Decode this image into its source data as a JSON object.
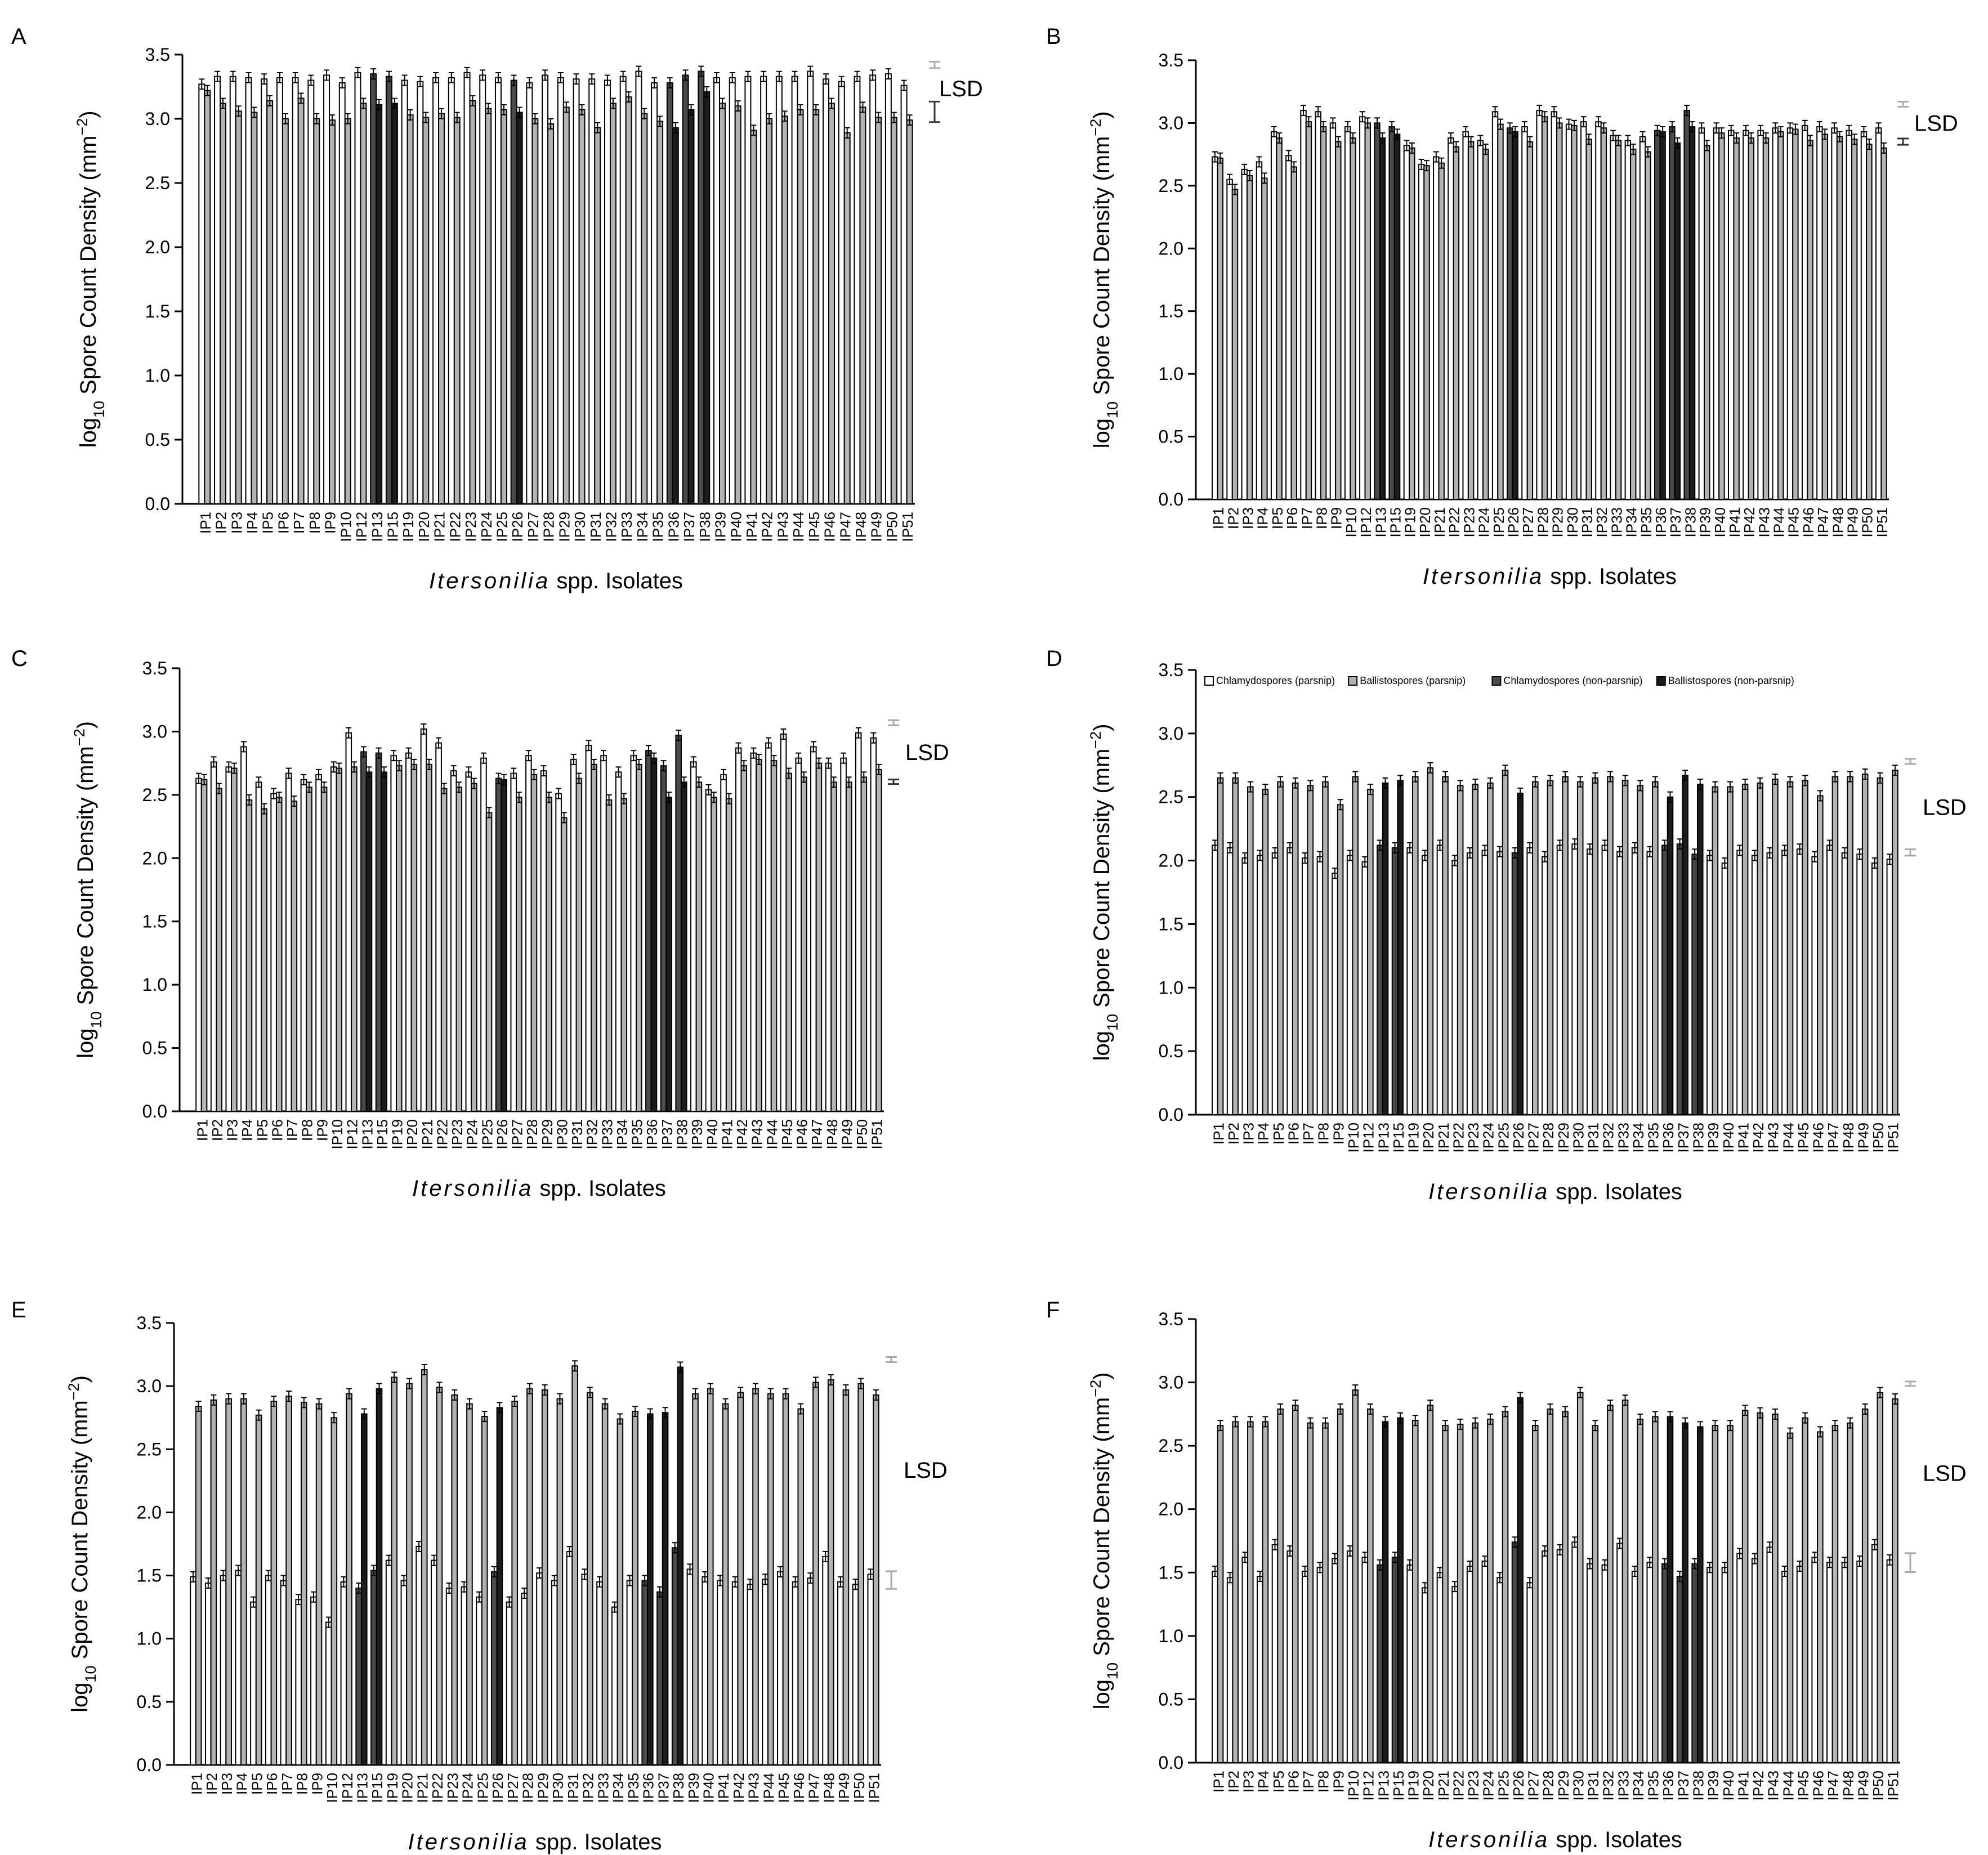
{
  "figure": {
    "xlabel_italic": "Itersonilia",
    "xlabel_rest": " spp. Isolates",
    "ylabel_prefix": "log",
    "ylabel_sub": "10",
    "ylabel_main": "  Spore Count Density  (mm",
    "ylabel_sup": "−2",
    "ylabel_close": ")",
    "lsd_label": "LSD",
    "categories": [
      "IP1",
      "IP2",
      "IP3",
      "IP4",
      "IP5",
      "IP6",
      "IP7",
      "IP8",
      "IP9",
      "IP10",
      "IP12",
      "IP13",
      "IP15",
      "IP19",
      "IP20",
      "IP21",
      "IP22",
      "IP23",
      "IP24",
      "IP25",
      "IP26",
      "IP27",
      "IP28",
      "IP29",
      "IP30",
      "IP31",
      "IP32",
      "IP33",
      "IP34",
      "IP35",
      "IP36",
      "IP37",
      "IP38",
      "IP39",
      "IP40",
      "IP41",
      "IP42",
      "IP43",
      "IP44",
      "IP45",
      "IP46",
      "IP47",
      "IP48",
      "IP49",
      "IP50",
      "IP51"
    ],
    "non_parsnip_isolates": [
      "IP13",
      "IP15",
      "IP26",
      "IP36",
      "IP37",
      "IP38"
    ],
    "legend": [
      "Chlamydospores (parsnip)",
      "Ballistospores (parsnip)",
      "Chlamydospores (non-parsnip)",
      "Ballistospores (non-parsnip)"
    ],
    "colors": {
      "chlamy_parsnip": "#ffffff",
      "ballisto_parsnip": "#b3b3b3",
      "chlamy_nonparsnip": "#4a4a4a",
      "ballisto_nonparsnip": "#1c1c1c",
      "lsd_chlamy": "#aaaaaa",
      "lsd_ballisto": "#333333"
    }
  },
  "chart_data": [
    {
      "type": "bar",
      "panel": "A",
      "ylim": [
        0,
        3.5
      ],
      "yticks": [
        "0.0",
        "0.5",
        "1.0",
        "1.5",
        "2.0",
        "2.5",
        "3.0",
        "3.5"
      ],
      "series": [
        {
          "name": "Chlamydospores",
          "values": [
            3.27,
            3.33,
            3.33,
            3.32,
            3.31,
            3.32,
            3.32,
            3.3,
            3.34,
            3.28,
            3.36,
            3.35,
            3.33,
            3.3,
            3.29,
            3.32,
            3.32,
            3.36,
            3.34,
            3.32,
            3.3,
            3.28,
            3.34,
            3.32,
            3.31,
            3.31,
            3.3,
            3.33,
            3.37,
            3.28,
            3.28,
            3.34,
            3.37,
            3.32,
            3.32,
            3.33,
            3.33,
            3.33,
            3.33,
            3.37,
            3.31,
            3.29,
            3.33,
            3.34,
            3.35,
            3.26
          ]
        },
        {
          "name": "Ballistospores",
          "values": [
            3.22,
            3.12,
            3.06,
            3.05,
            3.14,
            3.0,
            3.16,
            3.0,
            2.99,
            3.0,
            3.12,
            3.11,
            3.12,
            3.03,
            3.01,
            3.04,
            3.01,
            3.14,
            3.08,
            3.07,
            3.05,
            3.0,
            2.96,
            3.09,
            3.07,
            2.93,
            3.12,
            3.17,
            3.04,
            2.98,
            2.93,
            3.07,
            3.21,
            3.12,
            3.1,
            2.91,
            3.0,
            3.02,
            3.07,
            3.07,
            3.12,
            2.89,
            3.09,
            3.01,
            3.01,
            2.99
          ]
        }
      ],
      "lsd": {
        "chlamydospores": 0.05,
        "ballistospores": 0.16
      }
    },
    {
      "type": "bar",
      "panel": "B",
      "ylim": [
        0,
        3.5
      ],
      "yticks": [
        "0.0",
        "0.5",
        "1.0",
        "1.5",
        "2.0",
        "2.5",
        "3.0",
        "3.5"
      ],
      "series": [
        {
          "name": "Chlamydospores",
          "values": [
            2.73,
            2.55,
            2.63,
            2.69,
            2.93,
            2.74,
            3.1,
            3.09,
            3.0,
            2.97,
            3.05,
            3.0,
            2.97,
            2.82,
            2.67,
            2.73,
            2.88,
            2.93,
            2.86,
            3.09,
            2.96,
            2.97,
            3.1,
            3.09,
            2.99,
            3.01,
            3.01,
            2.9,
            2.86,
            2.89,
            2.94,
            2.97,
            3.1,
            2.96,
            2.96,
            2.94,
            2.94,
            2.94,
            2.96,
            2.96,
            2.98,
            2.97,
            2.96,
            2.94,
            2.93,
            2.96
          ]
        },
        {
          "name": "Ballistospores",
          "values": [
            2.72,
            2.47,
            2.58,
            2.56,
            2.88,
            2.65,
            3.01,
            2.97,
            2.85,
            2.88,
            3.0,
            2.88,
            2.91,
            2.8,
            2.66,
            2.68,
            2.81,
            2.85,
            2.79,
            2.99,
            2.93,
            2.85,
            3.05,
            3.0,
            2.98,
            2.87,
            2.96,
            2.86,
            2.79,
            2.77,
            2.93,
            2.84,
            2.97,
            2.82,
            2.92,
            2.88,
            2.88,
            2.88,
            2.93,
            2.95,
            2.86,
            2.91,
            2.89,
            2.87,
            2.83,
            2.8
          ]
        }
      ],
      "lsd": {
        "chlamydospores": 0.04,
        "ballistospores": 0.05
      }
    },
    {
      "type": "bar",
      "panel": "C",
      "ylim": [
        0,
        3.5
      ],
      "yticks": [
        "0.0",
        "0.5",
        "1.0",
        "1.5",
        "2.0",
        "2.5",
        "3.0",
        "3.5"
      ],
      "series": [
        {
          "name": "Chlamydospores",
          "values": [
            2.63,
            2.76,
            2.72,
            2.88,
            2.6,
            2.51,
            2.67,
            2.62,
            2.66,
            2.72,
            2.99,
            2.84,
            2.83,
            2.81,
            2.83,
            3.02,
            2.91,
            2.69,
            2.68,
            2.79,
            2.63,
            2.67,
            2.81,
            2.69,
            2.51,
            2.78,
            2.89,
            2.81,
            2.68,
            2.81,
            2.85,
            2.73,
            2.97,
            2.76,
            2.54,
            2.66,
            2.87,
            2.83,
            2.91,
            2.98,
            2.79,
            2.88,
            2.75,
            2.79,
            2.99,
            2.95
          ]
        },
        {
          "name": "Ballistospores",
          "values": [
            2.62,
            2.55,
            2.71,
            2.46,
            2.39,
            2.48,
            2.45,
            2.56,
            2.56,
            2.71,
            2.72,
            2.68,
            2.68,
            2.73,
            2.74,
            2.74,
            2.55,
            2.56,
            2.59,
            2.36,
            2.62,
            2.48,
            2.66,
            2.48,
            2.32,
            2.63,
            2.74,
            2.46,
            2.47,
            2.74,
            2.79,
            2.48,
            2.6,
            2.6,
            2.48,
            2.47,
            2.73,
            2.78,
            2.77,
            2.67,
            2.64,
            2.75,
            2.6,
            2.6,
            2.64,
            2.7
          ]
        }
      ],
      "lsd": {
        "chlamydospores": 0.04,
        "ballistospores": 0.03
      }
    },
    {
      "type": "bar",
      "panel": "D",
      "legend_position": "top",
      "ylim": [
        0,
        3.5
      ],
      "yticks": [
        "0.0",
        "0.5",
        "1.0",
        "1.5",
        "2.0",
        "2.5",
        "3.0",
        "3.5"
      ],
      "series": [
        {
          "name": "Chlamydospores",
          "values": [
            2.12,
            2.1,
            2.02,
            2.04,
            2.06,
            2.1,
            2.02,
            2.03,
            1.9,
            2.04,
            1.99,
            2.12,
            2.1,
            2.1,
            2.04,
            2.12,
            2.0,
            2.06,
            2.08,
            2.07,
            2.06,
            2.1,
            2.03,
            2.12,
            2.13,
            2.09,
            2.12,
            2.07,
            2.1,
            2.07,
            2.12,
            2.13,
            2.05,
            2.04,
            1.98,
            2.08,
            2.04,
            2.06,
            2.08,
            2.09,
            2.03,
            2.12,
            2.06,
            2.05,
            1.98,
            2.01
          ]
        },
        {
          "name": "Ballistospores",
          "values": [
            2.65,
            2.65,
            2.58,
            2.56,
            2.62,
            2.61,
            2.59,
            2.62,
            2.44,
            2.66,
            2.56,
            2.61,
            2.63,
            2.66,
            2.73,
            2.66,
            2.59,
            2.6,
            2.61,
            2.71,
            2.53,
            2.62,
            2.63,
            2.66,
            2.62,
            2.65,
            2.66,
            2.63,
            2.59,
            2.62,
            2.5,
            2.67,
            2.6,
            2.58,
            2.58,
            2.6,
            2.61,
            2.64,
            2.62,
            2.63,
            2.51,
            2.66,
            2.66,
            2.68,
            2.65,
            2.71
          ]
        }
      ],
      "lsd": {
        "chlamydospores": 0.05,
        "ballistospores": 0.04
      }
    },
    {
      "type": "bar",
      "panel": "E",
      "ylim": [
        0,
        3.5
      ],
      "yticks": [
        "0.0",
        "0.5",
        "1.0",
        "1.5",
        "2.0",
        "2.5",
        "3.0",
        "3.5"
      ],
      "series": [
        {
          "name": "Chlamydospores",
          "values": [
            1.49,
            1.44,
            1.5,
            1.54,
            1.29,
            1.5,
            1.46,
            1.31,
            1.33,
            1.13,
            1.45,
            1.4,
            1.54,
            1.62,
            1.46,
            1.73,
            1.62,
            1.4,
            1.41,
            1.33,
            1.53,
            1.29,
            1.36,
            1.52,
            1.46,
            1.69,
            1.51,
            1.45,
            1.25,
            1.46,
            1.46,
            1.37,
            1.72,
            1.55,
            1.49,
            1.46,
            1.45,
            1.43,
            1.47,
            1.53,
            1.45,
            1.48,
            1.65,
            1.45,
            1.43,
            1.51
          ]
        },
        {
          "name": "Ballistospores",
          "values": [
            2.84,
            2.89,
            2.9,
            2.9,
            2.77,
            2.88,
            2.92,
            2.87,
            2.86,
            2.75,
            2.94,
            2.78,
            2.98,
            3.07,
            3.02,
            3.13,
            2.99,
            2.93,
            2.86,
            2.76,
            2.83,
            2.88,
            2.98,
            2.97,
            2.9,
            3.16,
            2.95,
            2.86,
            2.74,
            2.8,
            2.78,
            2.79,
            3.15,
            2.94,
            2.98,
            2.86,
            2.95,
            2.98,
            2.94,
            2.94,
            2.82,
            3.03,
            3.05,
            2.97,
            3.02,
            2.93
          ]
        }
      ],
      "lsd": {
        "chlamydospores": 0.14,
        "ballistospores": 0.04
      }
    },
    {
      "type": "bar",
      "panel": "F",
      "ylim": [
        0,
        3.5
      ],
      "yticks": [
        "0.0",
        "0.5",
        "1.0",
        "1.5",
        "2.0",
        "2.5",
        "3.0",
        "3.5"
      ],
      "series": [
        {
          "name": "Chlamydospores",
          "values": [
            1.51,
            1.46,
            1.62,
            1.47,
            1.72,
            1.67,
            1.51,
            1.54,
            1.61,
            1.67,
            1.62,
            1.56,
            1.62,
            1.56,
            1.38,
            1.5,
            1.39,
            1.55,
            1.59,
            1.46,
            1.74,
            1.42,
            1.67,
            1.68,
            1.74,
            1.57,
            1.56,
            1.73,
            1.51,
            1.58,
            1.57,
            1.47,
            1.57,
            1.54,
            1.54,
            1.65,
            1.61,
            1.7,
            1.51,
            1.55,
            1.62,
            1.58,
            1.58,
            1.59,
            1.72,
            1.6
          ]
        },
        {
          "name": "Ballistospores",
          "values": [
            2.66,
            2.69,
            2.69,
            2.69,
            2.79,
            2.82,
            2.68,
            2.68,
            2.79,
            2.94,
            2.79,
            2.69,
            2.72,
            2.7,
            2.82,
            2.66,
            2.67,
            2.68,
            2.71,
            2.77,
            2.88,
            2.66,
            2.79,
            2.77,
            2.92,
            2.66,
            2.82,
            2.86,
            2.71,
            2.73,
            2.73,
            2.68,
            2.65,
            2.66,
            2.66,
            2.78,
            2.76,
            2.75,
            2.6,
            2.72,
            2.61,
            2.66,
            2.68,
            2.79,
            2.92,
            2.87
          ]
        }
      ],
      "lsd": {
        "chlamydospores": 0.15,
        "ballistospores": 0.03
      }
    }
  ]
}
